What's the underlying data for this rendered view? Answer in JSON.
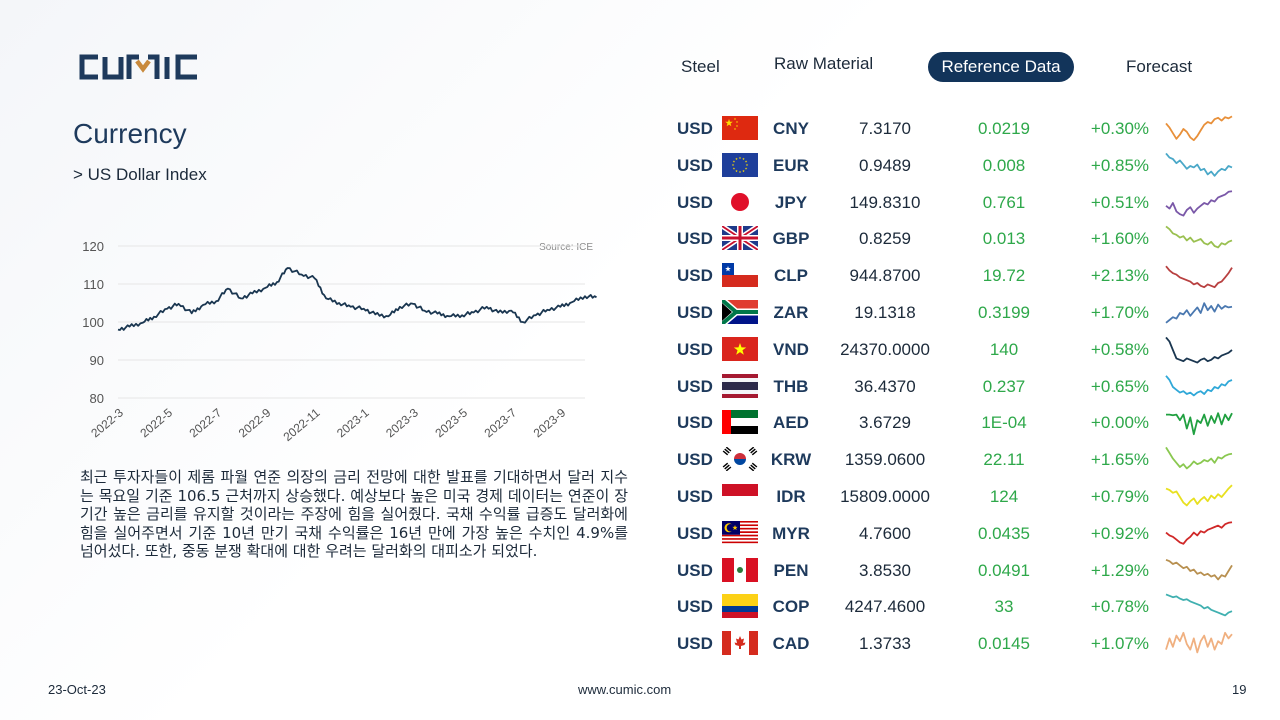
{
  "brand": {
    "logo_text": "CUMIC"
  },
  "nav": {
    "tabs": [
      {
        "label": "Steel",
        "active": false
      },
      {
        "label": "Raw Material",
        "active": false
      },
      {
        "label": "Reference Data",
        "active": true
      },
      {
        "label": "Forecast",
        "active": false
      }
    ]
  },
  "page": {
    "title": "Currency",
    "subtitle": "> US Dollar Index"
  },
  "chart_data": {
    "type": "line",
    "source_label": "Source: ICE",
    "ylim": [
      80,
      120
    ],
    "yticks": [
      120,
      110,
      100,
      90,
      80
    ],
    "xticks": [
      "2022-3",
      "2022-5",
      "2022-7",
      "2022-9",
      "2022-11",
      "2023-1",
      "2023-3",
      "2023-5",
      "2023-7",
      "2023-9"
    ],
    "x_range": [
      "2022-3",
      "2023-10"
    ],
    "grid": true,
    "series": [
      {
        "color": "#1a3650",
        "x": [
          "2022-03-01",
          "2022-03-15",
          "2022-04-01",
          "2022-04-15",
          "2022-05-01",
          "2022-05-15",
          "2022-06-01",
          "2022-06-15",
          "2022-07-01",
          "2022-07-15",
          "2022-08-01",
          "2022-08-15",
          "2022-09-01",
          "2022-09-15",
          "2022-09-28",
          "2022-10-15",
          "2022-11-01",
          "2022-11-15",
          "2022-12-01",
          "2022-12-15",
          "2023-01-01",
          "2023-01-15",
          "2023-02-01",
          "2023-02-15",
          "2023-03-01",
          "2023-03-15",
          "2023-04-01",
          "2023-04-15",
          "2023-05-01",
          "2023-05-15",
          "2023-06-01",
          "2023-06-15",
          "2023-07-01",
          "2023-07-15",
          "2023-08-01",
          "2023-08-15",
          "2023-09-01",
          "2023-09-15",
          "2023-10-01",
          "2023-10-15"
        ],
        "values": [
          98.0,
          98.8,
          99.8,
          101.4,
          103.5,
          104.8,
          102.3,
          104.5,
          105.5,
          108.8,
          106.2,
          107.5,
          109.0,
          110.5,
          114.2,
          112.5,
          111.5,
          106.2,
          105.0,
          104.0,
          103.5,
          102.0,
          101.5,
          104.0,
          104.8,
          103.0,
          102.2,
          101.5,
          101.8,
          102.5,
          104.0,
          102.5,
          103.0,
          100.0,
          101.8,
          103.2,
          104.0,
          105.2,
          106.8,
          106.5
        ]
      }
    ]
  },
  "body_text": "최근 투자자들이 제롬 파월 연준 의장의 금리 전망에 대한 발표를 기대하면서 달러 지수는 목요일 기준 106.5 근처까지 상승했다. 예상보다 높은 미국 경제 데이터는 연준이 장기간 높은 금리를 유지할 것이라는 주장에 힘을 실어줬다. 국채 수익률 급증도 달러화에 힘을 실어주면서 기준 10년 만기 국채 수익률은 16년 만에 가장 높은 수치인 4.9%를 넘어섰다. 또한, 중동 분쟁 확대에 대한 우려는 달러화의 대피소가 되었다.",
  "rates": [
    {
      "base": "USD",
      "quote": "CNY",
      "flag": "cn-flag-icon",
      "rate": "7.3170",
      "change": "0.0219",
      "pct": "+0.30%",
      "spark_color": "#e8903a",
      "spark": [
        0.7,
        0.55,
        0.35,
        0.15,
        0.3,
        0.5,
        0.4,
        0.2,
        0.1,
        0.25,
        0.45,
        0.65,
        0.75,
        0.7,
        0.85,
        0.9,
        0.8,
        0.92,
        0.88,
        0.95
      ]
    },
    {
      "base": "USD",
      "quote": "EUR",
      "flag": "eu-flag-icon",
      "rate": "0.9489",
      "change": "0.008",
      "pct": "+0.85%",
      "spark_color": "#4aa8c8",
      "spark": [
        0.95,
        0.8,
        0.75,
        0.6,
        0.7,
        0.55,
        0.4,
        0.5,
        0.45,
        0.55,
        0.35,
        0.4,
        0.2,
        0.3,
        0.15,
        0.3,
        0.4,
        0.35,
        0.5,
        0.45
      ]
    },
    {
      "base": "USD",
      "quote": "JPY",
      "flag": "jp-flag-icon",
      "rate": "149.8310",
      "change": "0.761",
      "pct": "+0.51%",
      "spark_color": "#7a58a8",
      "spark": [
        0.4,
        0.3,
        0.5,
        0.2,
        0.1,
        0.05,
        0.25,
        0.35,
        0.15,
        0.3,
        0.4,
        0.5,
        0.45,
        0.6,
        0.55,
        0.7,
        0.75,
        0.8,
        0.9,
        0.92
      ]
    },
    {
      "base": "USD",
      "quote": "GBP",
      "flag": "gb-flag-icon",
      "rate": "0.8259",
      "change": "0.013",
      "pct": "+1.60%",
      "spark_color": "#9ac050",
      "spark": [
        0.95,
        0.85,
        0.7,
        0.65,
        0.55,
        0.6,
        0.45,
        0.55,
        0.4,
        0.45,
        0.5,
        0.35,
        0.3,
        0.4,
        0.25,
        0.2,
        0.35,
        0.3,
        0.4,
        0.45
      ]
    },
    {
      "base": "USD",
      "quote": "CLP",
      "flag": "cl-flag-icon",
      "rate": "944.8700",
      "change": "19.72",
      "pct": "+2.13%",
      "spark_color": "#b84040",
      "spark": [
        0.85,
        0.7,
        0.6,
        0.55,
        0.45,
        0.4,
        0.35,
        0.3,
        0.2,
        0.25,
        0.15,
        0.1,
        0.2,
        0.15,
        0.1,
        0.25,
        0.3,
        0.45,
        0.6,
        0.8
      ]
    },
    {
      "base": "USD",
      "quote": "ZAR",
      "flag": "za-flag-icon",
      "rate": "19.1318",
      "change": "0.3199",
      "pct": "+1.70%",
      "spark_color": "#4a78b0",
      "spark": [
        0.15,
        0.25,
        0.35,
        0.3,
        0.5,
        0.45,
        0.6,
        0.4,
        0.55,
        0.7,
        0.5,
        0.85,
        0.6,
        0.75,
        0.55,
        0.8,
        0.65,
        0.75,
        0.7,
        0.72
      ]
    },
    {
      "base": "USD",
      "quote": "VND",
      "flag": "vn-flag-icon",
      "rate": "24370.0000",
      "change": "140",
      "pct": "+0.58%",
      "spark_color": "#1a3650",
      "spark": [
        0.95,
        0.8,
        0.5,
        0.2,
        0.15,
        0.1,
        0.2,
        0.15,
        0.1,
        0.05,
        0.15,
        0.2,
        0.1,
        0.15,
        0.25,
        0.2,
        0.3,
        0.35,
        0.4,
        0.5
      ]
    },
    {
      "base": "USD",
      "quote": "THB",
      "flag": "th-flag-icon",
      "rate": "36.4370",
      "change": "0.237",
      "pct": "+0.65%",
      "spark_color": "#30a8d8",
      "spark": [
        0.9,
        0.75,
        0.5,
        0.4,
        0.3,
        0.35,
        0.25,
        0.3,
        0.2,
        0.3,
        0.35,
        0.25,
        0.4,
        0.35,
        0.5,
        0.45,
        0.6,
        0.55,
        0.7,
        0.75
      ]
    },
    {
      "base": "USD",
      "quote": "AED",
      "flag": "ae-flag-icon",
      "rate": "3.6729",
      "change": "1E-04",
      "pct": "+0.00%",
      "spark_color": "#20a040",
      "spark": [
        0.8,
        0.8,
        0.78,
        0.8,
        0.6,
        0.8,
        0.3,
        0.7,
        0.1,
        0.6,
        0.5,
        0.8,
        0.4,
        0.75,
        0.5,
        0.85,
        0.45,
        0.8,
        0.6,
        0.85
      ]
    },
    {
      "base": "USD",
      "quote": "KRW",
      "flag": "kr-flag-icon",
      "rate": "1359.0600",
      "change": "22.11",
      "pct": "+1.65%",
      "spark_color": "#8ac850",
      "spark": [
        0.95,
        0.75,
        0.55,
        0.4,
        0.25,
        0.35,
        0.2,
        0.3,
        0.45,
        0.35,
        0.4,
        0.5,
        0.45,
        0.55,
        0.4,
        0.6,
        0.55,
        0.65,
        0.7,
        0.72
      ]
    },
    {
      "base": "USD",
      "quote": "IDR",
      "flag": "id-flag-icon",
      "rate": "15809.0000",
      "change": "124",
      "pct": "+0.79%",
      "spark_color": "#e8e020",
      "spark": [
        0.8,
        0.75,
        0.65,
        0.7,
        0.5,
        0.3,
        0.2,
        0.35,
        0.45,
        0.25,
        0.4,
        0.5,
        0.35,
        0.55,
        0.45,
        0.6,
        0.5,
        0.65,
        0.8,
        0.92
      ]
    },
    {
      "base": "USD",
      "quote": "MYR",
      "flag": "my-flag-icon",
      "rate": "4.7600",
      "change": "0.0435",
      "pct": "+0.92%",
      "spark_color": "#d02828",
      "spark": [
        0.55,
        0.45,
        0.4,
        0.3,
        0.2,
        0.15,
        0.3,
        0.4,
        0.55,
        0.45,
        0.6,
        0.55,
        0.65,
        0.7,
        0.75,
        0.8,
        0.72,
        0.85,
        0.9,
        0.92
      ]
    },
    {
      "base": "USD",
      "quote": "PEN",
      "flag": "pe-flag-icon",
      "rate": "3.8530",
      "change": "0.0491",
      "pct": "+1.29%",
      "spark_color": "#b89050",
      "spark": [
        0.9,
        0.85,
        0.75,
        0.8,
        0.7,
        0.6,
        0.65,
        0.5,
        0.55,
        0.4,
        0.45,
        0.35,
        0.4,
        0.3,
        0.35,
        0.2,
        0.35,
        0.3,
        0.5,
        0.7
      ]
    },
    {
      "base": "USD",
      "quote": "COP",
      "flag": "co-flag-icon",
      "rate": "4247.4600",
      "change": "33",
      "pct": "+0.78%",
      "spark_color": "#40b0b0",
      "spark": [
        0.95,
        0.9,
        0.85,
        0.88,
        0.8,
        0.75,
        0.78,
        0.7,
        0.65,
        0.6,
        0.55,
        0.45,
        0.5,
        0.4,
        0.35,
        0.3,
        0.25,
        0.2,
        0.3,
        0.35
      ]
    },
    {
      "base": "USD",
      "quote": "CAD",
      "flag": "ca-flag-icon",
      "rate": "1.3733",
      "change": "0.0145",
      "pct": "+1.07%",
      "spark_color": "#f0b080",
      "spark": [
        0.3,
        0.7,
        0.4,
        0.8,
        0.6,
        0.9,
        0.5,
        0.3,
        0.7,
        0.2,
        0.6,
        0.8,
        0.4,
        0.7,
        0.3,
        0.6,
        0.5,
        0.9,
        0.7,
        0.85
      ]
    }
  ],
  "footer": {
    "date": "23-Oct-23",
    "website": "www.cumic.com",
    "page_number": "19"
  }
}
